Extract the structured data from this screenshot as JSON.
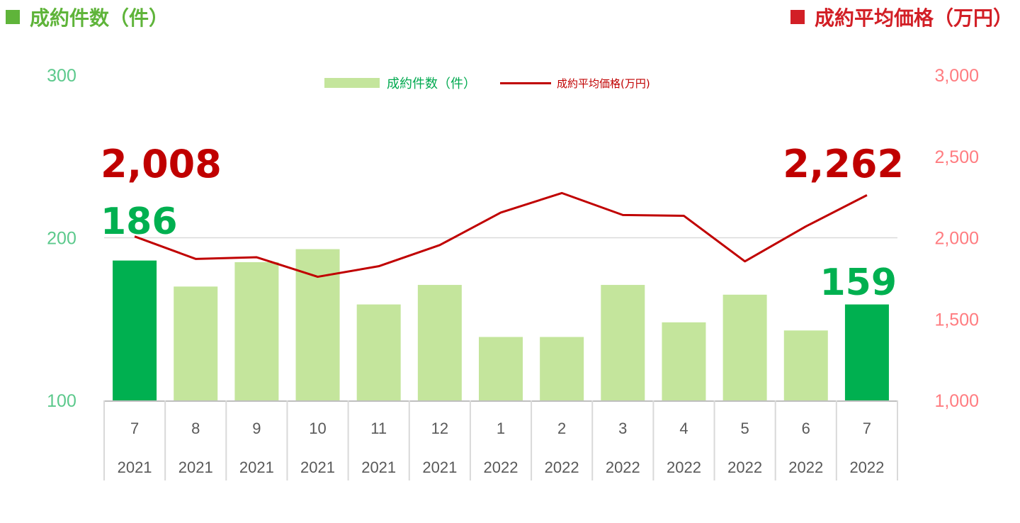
{
  "header": {
    "left_title": "成約件数（件）",
    "right_title": "成約平均価格（万円）",
    "left_color": "#5fb43a",
    "right_color": "#d21f26"
  },
  "legend": {
    "bars_label": "成約件数（件）",
    "line_label": "成約平均価格(万円)"
  },
  "chart_data": {
    "type": "bar",
    "categories": [
      "7",
      "8",
      "9",
      "10",
      "11",
      "12",
      "1",
      "2",
      "3",
      "4",
      "5",
      "6",
      "7"
    ],
    "category_years": [
      "2021",
      "2021",
      "2021",
      "2021",
      "2021",
      "2021",
      "2022",
      "2022",
      "2022",
      "2022",
      "2022",
      "2022",
      "2022"
    ],
    "series": [
      {
        "name": "成約件数（件）",
        "type": "bar",
        "axis": "left",
        "values": [
          186,
          170,
          185,
          193,
          159,
          171,
          139,
          139,
          171,
          148,
          165,
          143,
          159
        ],
        "highlight_indices": [
          0,
          12
        ],
        "color": "#c4e59c",
        "highlight_color": "#00b050"
      },
      {
        "name": "成約平均価格(万円)",
        "type": "line",
        "axis": "right",
        "values": [
          2008,
          1870,
          1880,
          1760,
          1825,
          1955,
          2155,
          2275,
          2140,
          2135,
          1855,
          2070,
          2262
        ],
        "color": "#c00000"
      }
    ],
    "y_left": {
      "ticks": [
        "100",
        "200",
        "300"
      ],
      "lim": [
        100,
        300
      ],
      "color": "#5cc98c"
    },
    "y_right": {
      "ticks": [
        "1,000",
        "1,500",
        "2,000",
        "2,500",
        "3,000"
      ],
      "lim": [
        1000,
        3000
      ],
      "color": "#ff7c80"
    },
    "annotations": [
      {
        "text": "2,008",
        "series": "line",
        "index": 0,
        "color": "#c00000"
      },
      {
        "text": "186",
        "series": "bars",
        "index": 0,
        "color": "#00b050"
      },
      {
        "text": "2,262",
        "series": "line",
        "index": 12,
        "color": "#c00000"
      },
      {
        "text": "159",
        "series": "bars",
        "index": 12,
        "color": "#00b050"
      }
    ],
    "gridlines": true,
    "legend_position": "top-center"
  }
}
